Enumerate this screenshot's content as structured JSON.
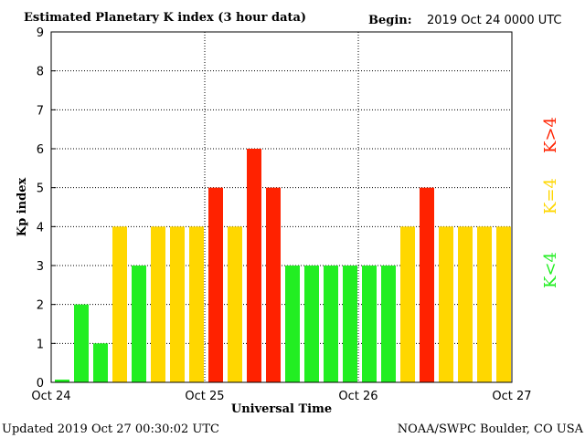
{
  "title": "Estimated Planetary K index (3 hour data)",
  "begin_label": "Begin:",
  "begin_value": "2019 Oct 24 0000 UTC",
  "updated": "Updated 2019 Oct 27 00:30:02 UTC",
  "credit": "NOAA/SWPC Boulder, CO USA",
  "legend": [
    {
      "label": "K<4",
      "color": "#22ee22"
    },
    {
      "label": "K=4",
      "color": "#ffd700"
    },
    {
      "label": "K>4",
      "color": "#ff2200"
    }
  ],
  "chart_data": {
    "type": "bar",
    "title": "Estimated Planetary K index (3 hour data)",
    "xlabel": "Universal Time",
    "ylabel": "Kp index",
    "ylim": [
      0,
      9
    ],
    "yticks": [
      "0",
      "1",
      "2",
      "3",
      "4",
      "5",
      "6",
      "7",
      "8",
      "9"
    ],
    "xticks": [
      "Oct 24",
      "Oct 25",
      "Oct 26",
      "Oct 27"
    ],
    "grid": "dotted",
    "bin_hours": 3,
    "values": [
      0.07,
      2,
      1,
      4,
      3,
      4,
      4,
      4,
      5,
      4,
      6,
      5,
      3,
      3,
      3,
      3,
      3,
      3,
      4,
      5,
      4,
      4,
      4,
      4
    ],
    "colors": {
      "below": "#22ee22",
      "equal": "#ffd700",
      "above": "#ff2200"
    }
  }
}
